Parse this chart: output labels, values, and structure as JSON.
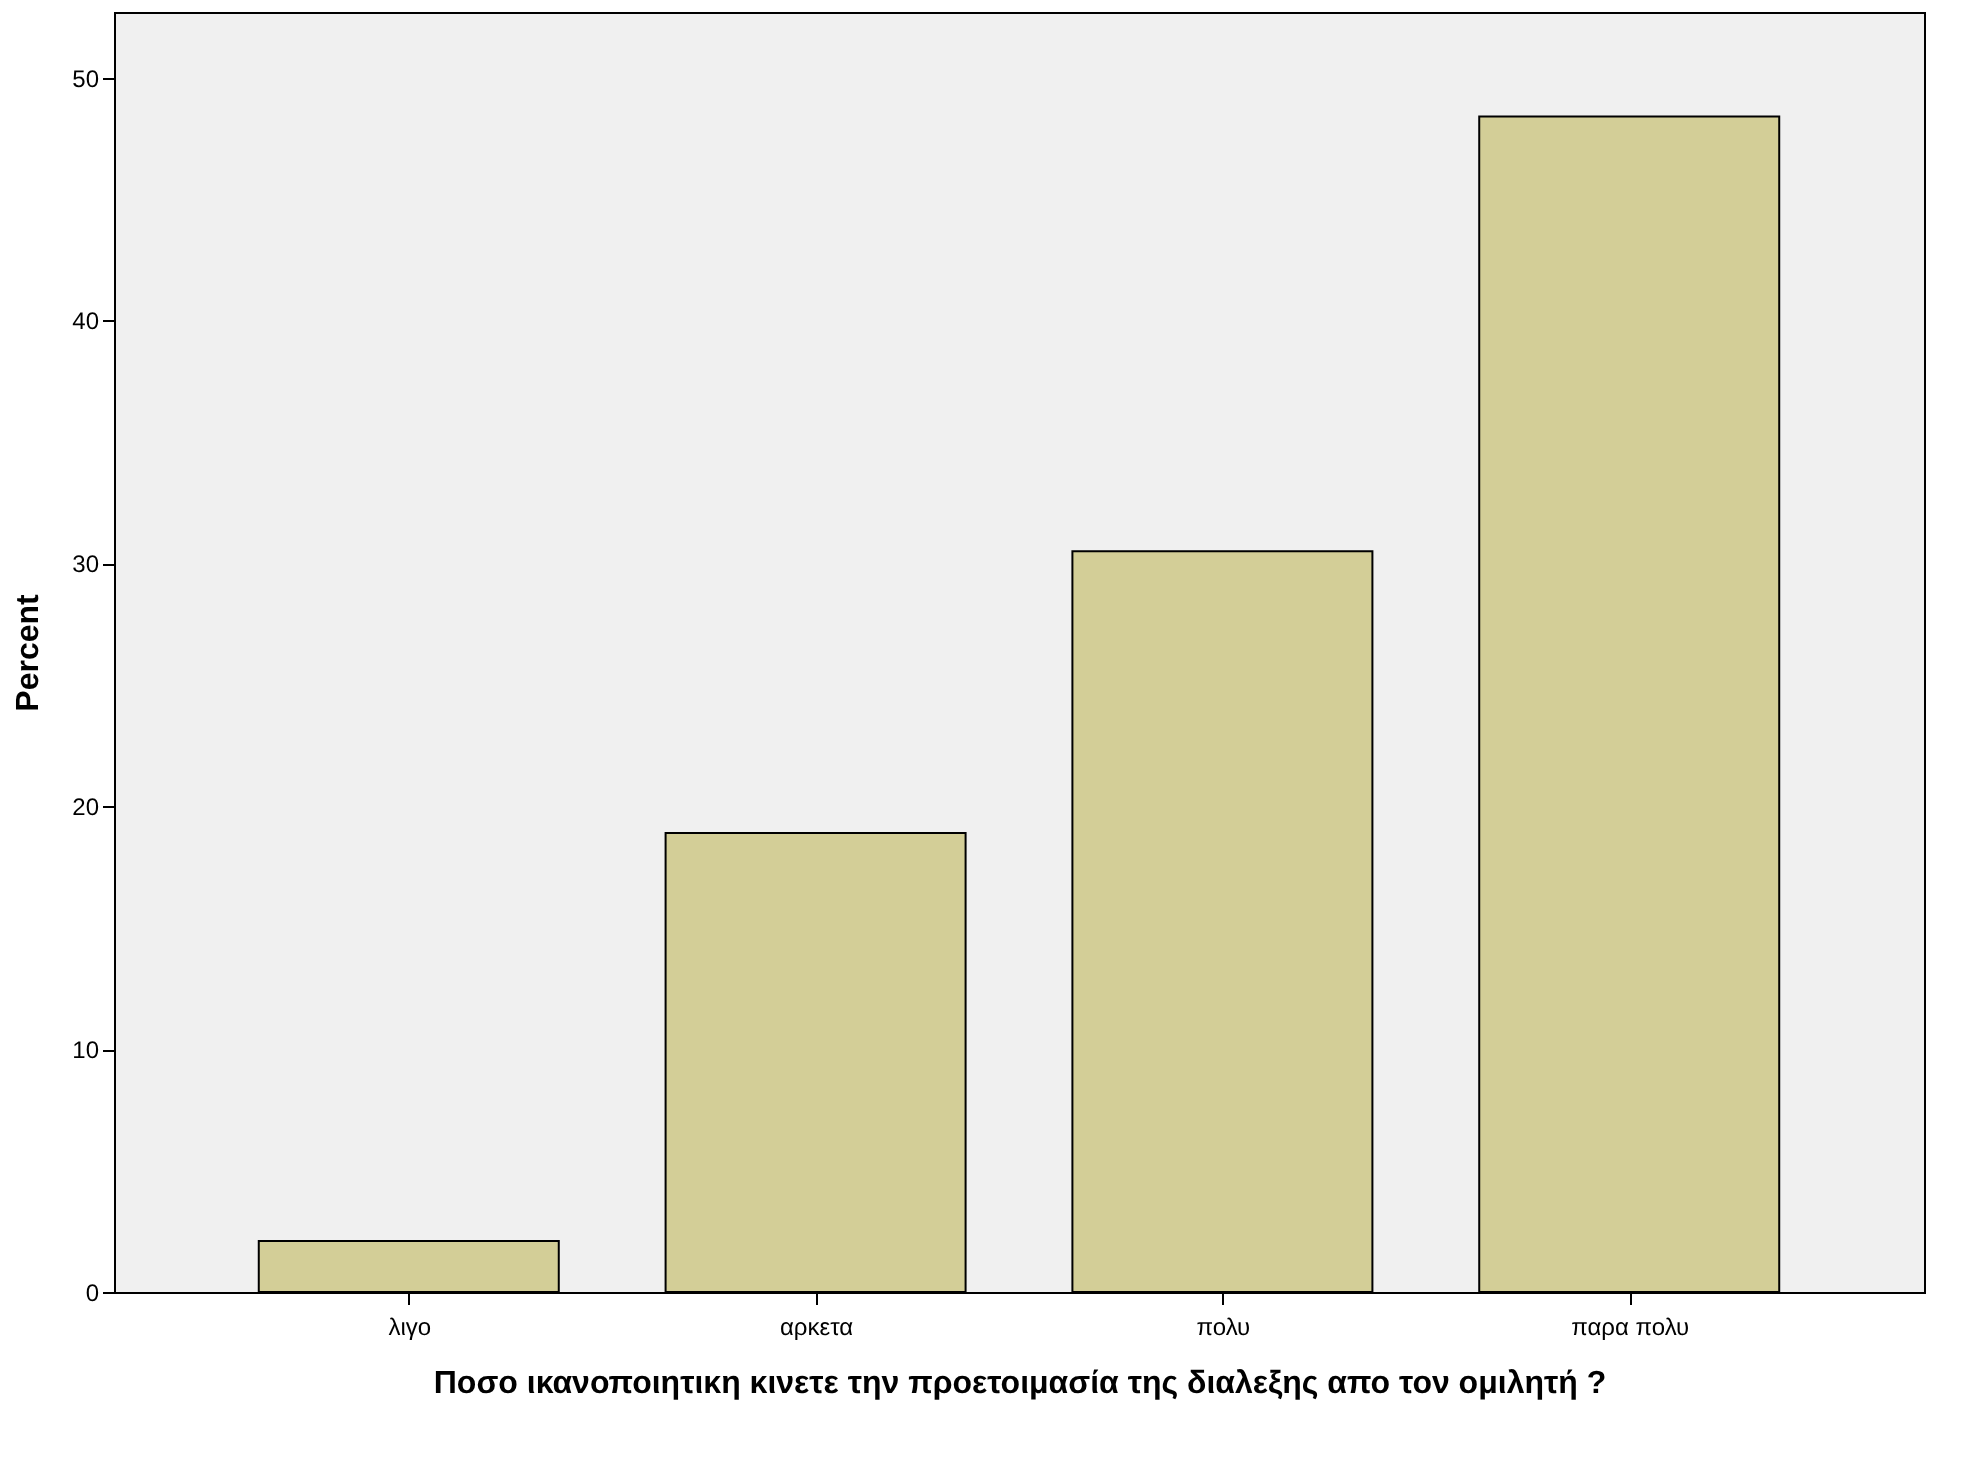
{
  "chart_data": {
    "type": "bar",
    "xlabel": "Ποσο ικανοποιητικη κινετε την προετοιμασία της διαλεξης απο τον ομιλητή ?",
    "ylabel": "Percent",
    "categories": [
      "λιγο",
      "αρκετα",
      "πολυ",
      "παρα πολυ"
    ],
    "values": [
      2.1,
      18.9,
      30.5,
      48.4
    ],
    "color": "#d3ce97",
    "ylim": [
      0,
      52.7
    ],
    "yticks": [
      0,
      10,
      20,
      30,
      40,
      50
    ],
    "grid": false,
    "legend": false
  }
}
